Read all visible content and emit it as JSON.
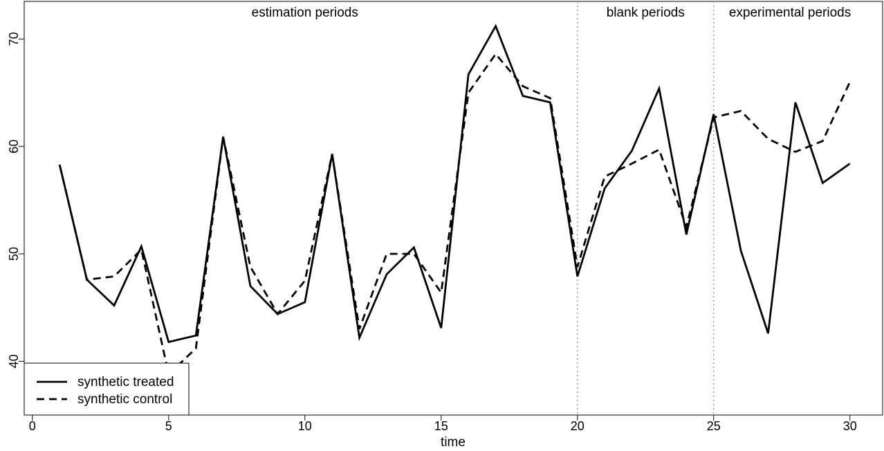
{
  "chart_data": {
    "type": "line",
    "title": "",
    "xlabel": "time",
    "ylabel": "",
    "xlim": [
      -0.3,
      31.2
    ],
    "ylim": [
      35,
      73.5
    ],
    "x_ticks": [
      0,
      5,
      10,
      15,
      20,
      25,
      30
    ],
    "y_ticks": [
      40,
      50,
      60,
      70
    ],
    "grid": false,
    "legend_position": "bottom-left",
    "x": [
      1,
      2,
      3,
      4,
      5,
      6,
      7,
      8,
      9,
      10,
      11,
      12,
      13,
      14,
      15,
      16,
      17,
      18,
      19,
      20,
      21,
      22,
      23,
      24,
      25,
      26,
      27,
      28,
      29,
      30
    ],
    "series": [
      {
        "name": "synthetic treated",
        "style": "solid",
        "color": "#000000",
        "values": [
          58.3,
          47.6,
          45.2,
          50.7,
          41.8,
          42.4,
          60.9,
          47.0,
          44.4,
          45.5,
          59.3,
          42.2,
          48.1,
          50.6,
          43.1,
          66.7,
          71.2,
          64.7,
          64.1,
          47.9,
          56.1,
          59.6,
          65.4,
          51.8,
          63.0,
          50.3,
          42.6,
          64.1,
          56.6,
          58.4
        ]
      },
      {
        "name": "synthetic control",
        "style": "dashed",
        "color": "#000000",
        "values": [
          58.3,
          47.6,
          47.9,
          50.4,
          38.8,
          41.2,
          60.9,
          48.8,
          44.4,
          47.5,
          59.3,
          43.0,
          50.0,
          50.0,
          46.4,
          65.0,
          68.6,
          65.6,
          64.5,
          48.8,
          57.2,
          58.4,
          59.7,
          52.5,
          62.7,
          63.3,
          60.7,
          59.5,
          60.5,
          66.0
        ]
      }
    ],
    "vlines": [
      {
        "x": 20,
        "style": "dotted",
        "color": "#9a9a9a"
      },
      {
        "x": 25,
        "style": "dotted",
        "color": "#9a9a9a"
      }
    ],
    "annotations": [
      {
        "text": "estimation periods",
        "x": 10
      },
      {
        "text": "blank periods",
        "x": 22.5
      },
      {
        "text": "experimental periods",
        "x": 27.8
      }
    ]
  }
}
